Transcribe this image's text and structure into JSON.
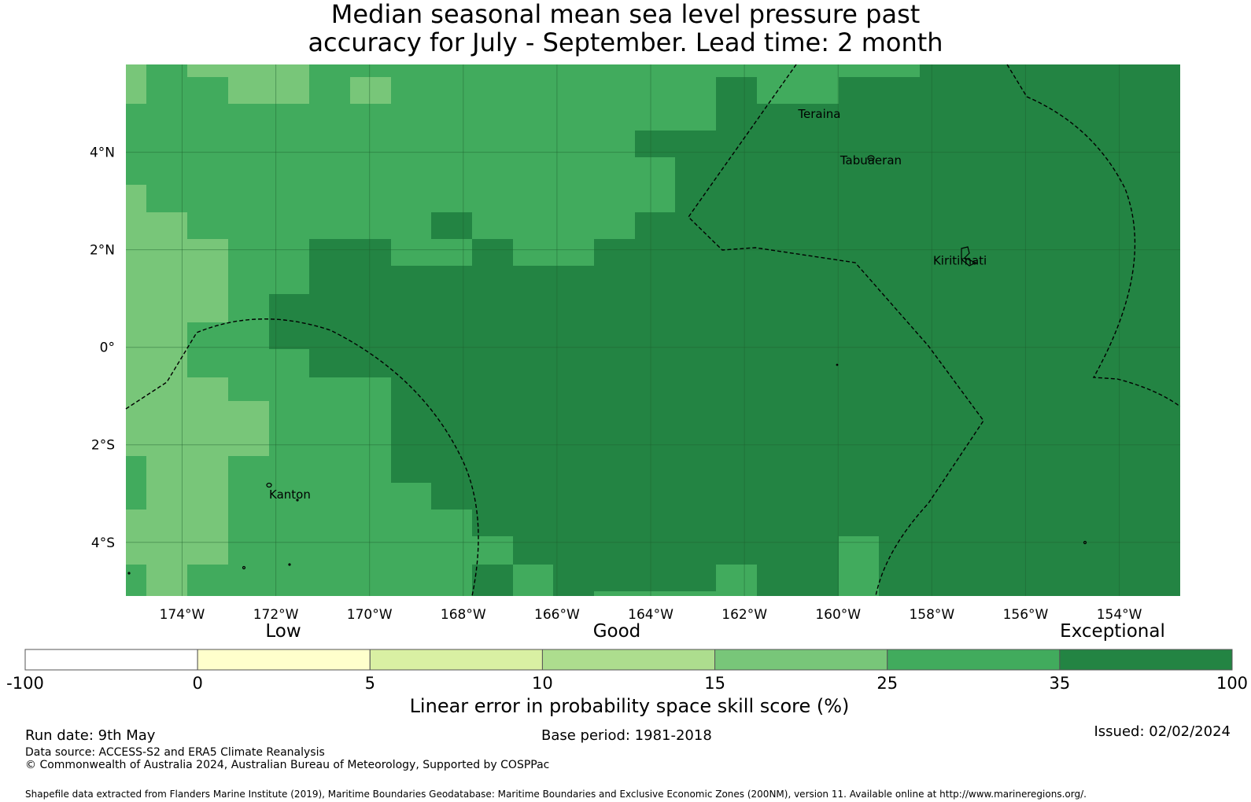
{
  "title": {
    "line1": "Median seasonal mean sea level pressure past",
    "line2": "accuracy for July - September. Lead time: 2 month"
  },
  "map": {
    "lon_range_deg": [
      -175.2,
      -152.7
    ],
    "lat_range_deg": [
      -5.1,
      5.8
    ],
    "lon_tick_labels": [
      "174°W",
      "172°W",
      "170°W",
      "168°W",
      "166°W",
      "164°W",
      "162°W",
      "160°W",
      "158°W",
      "156°W",
      "154°W"
    ],
    "lon_ticks_deg": [
      -174,
      -172,
      -170,
      -168,
      -166,
      -164,
      -162,
      -160,
      -158,
      -156,
      -154
    ],
    "lat_tick_labels": [
      "4°N",
      "2°N",
      "0°",
      "2°S",
      "4°S"
    ],
    "lat_ticks_deg": [
      4,
      2,
      0,
      -2,
      -4
    ],
    "gridlines": true,
    "places": [
      {
        "name": "Teraina",
        "lon": -160.4,
        "lat": 4.7
      },
      {
        "name": "Tabuaeran",
        "lon": -159.3,
        "lat": 3.75
      },
      {
        "name": "Kiritimati",
        "lon": -157.4,
        "lat": 1.7
      },
      {
        "name": "Kanton",
        "lon": -171.7,
        "lat": -3.1
      }
    ]
  },
  "legend": {
    "category_labels": [
      "Low",
      "Good",
      "Exceptional"
    ],
    "tick_labels": [
      "-100",
      "0",
      "5",
      "10",
      "15",
      "25",
      "35",
      "100"
    ],
    "colors": [
      "#ffffff",
      "#ffffcc",
      "#d9f0a3",
      "#addd8e",
      "#78c679",
      "#41ab5d",
      "#238443"
    ],
    "title": "Linear error in probability space skill score (%)"
  },
  "footer": {
    "run_date": "Run date: 9th May",
    "base_period": "Base period: 1981-2018",
    "issued": "Issued: 02/02/2024",
    "data_source": "Data source: ACCESS-S2 and ERA5 Climate Reanalysis",
    "copyright": "© Commonwealth of Australia 2024, Australian Bureau of Meteorology, Supported by COSPPac",
    "shapefile": "Shapefile data extracted from Flanders Marine Institute (2019), Maritime Boundaries Geodatabase: Maritime Boundaries and Exclusive Economic Zones (200NM), version 11. Available online at http://www.marineregions.org/."
  }
}
